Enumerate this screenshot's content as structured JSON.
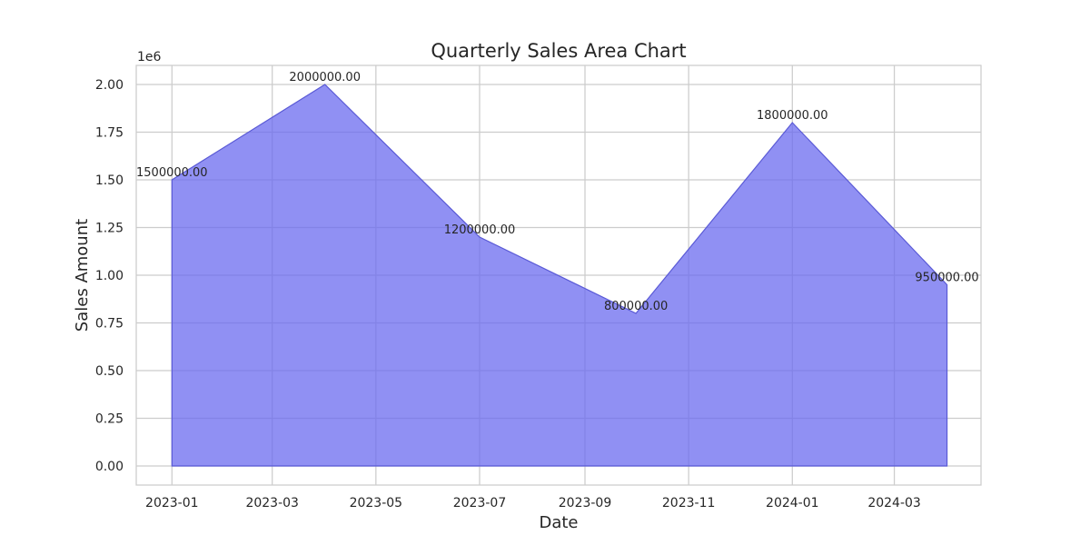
{
  "chart_data": {
    "type": "area",
    "title": "Quarterly Sales Area Chart",
    "xlabel": "Date",
    "ylabel": "Sales Amount",
    "y_offset_label": "1e6",
    "y_scale": 1000000,
    "x": [
      "2023-01-01",
      "2023-04-01",
      "2023-07-01",
      "2023-10-01",
      "2024-01-01",
      "2024-04-01"
    ],
    "values": [
      1500000,
      2000000,
      1200000,
      800000,
      1800000,
      950000
    ],
    "data_labels": [
      "1500000.00",
      "2000000.00",
      "1200000.00",
      "800000.00",
      "1800000.00",
      "950000.00"
    ],
    "x_ticks": [
      {
        "date": "2023-01-01",
        "label": "2023-01"
      },
      {
        "date": "2023-03-01",
        "label": "2023-03"
      },
      {
        "date": "2023-05-01",
        "label": "2023-05"
      },
      {
        "date": "2023-07-01",
        "label": "2023-07"
      },
      {
        "date": "2023-09-01",
        "label": "2023-09"
      },
      {
        "date": "2023-11-01",
        "label": "2023-11"
      },
      {
        "date": "2024-01-01",
        "label": "2024-01"
      },
      {
        "date": "2024-03-01",
        "label": "2024-03"
      }
    ],
    "y_ticks": [
      {
        "value": 0,
        "label": "0.00"
      },
      {
        "value": 250000,
        "label": "0.25"
      },
      {
        "value": 500000,
        "label": "0.50"
      },
      {
        "value": 750000,
        "label": "0.75"
      },
      {
        "value": 1000000,
        "label": "1.00"
      },
      {
        "value": 1250000,
        "label": "1.25"
      },
      {
        "value": 1500000,
        "label": "1.50"
      },
      {
        "value": 1750000,
        "label": "1.75"
      },
      {
        "value": 2000000,
        "label": "2.00"
      }
    ],
    "xlim": [
      "2022-12-11",
      "2024-04-21"
    ],
    "ylim": [
      -100000,
      2100000
    ],
    "grid": true,
    "legend": "none",
    "colors": {
      "fill": "#6b6bef",
      "fill_opacity": 0.75,
      "line": "#5a5ad6",
      "grid": "#cccccc",
      "spine": "#cccccc",
      "text": "#262626"
    }
  }
}
